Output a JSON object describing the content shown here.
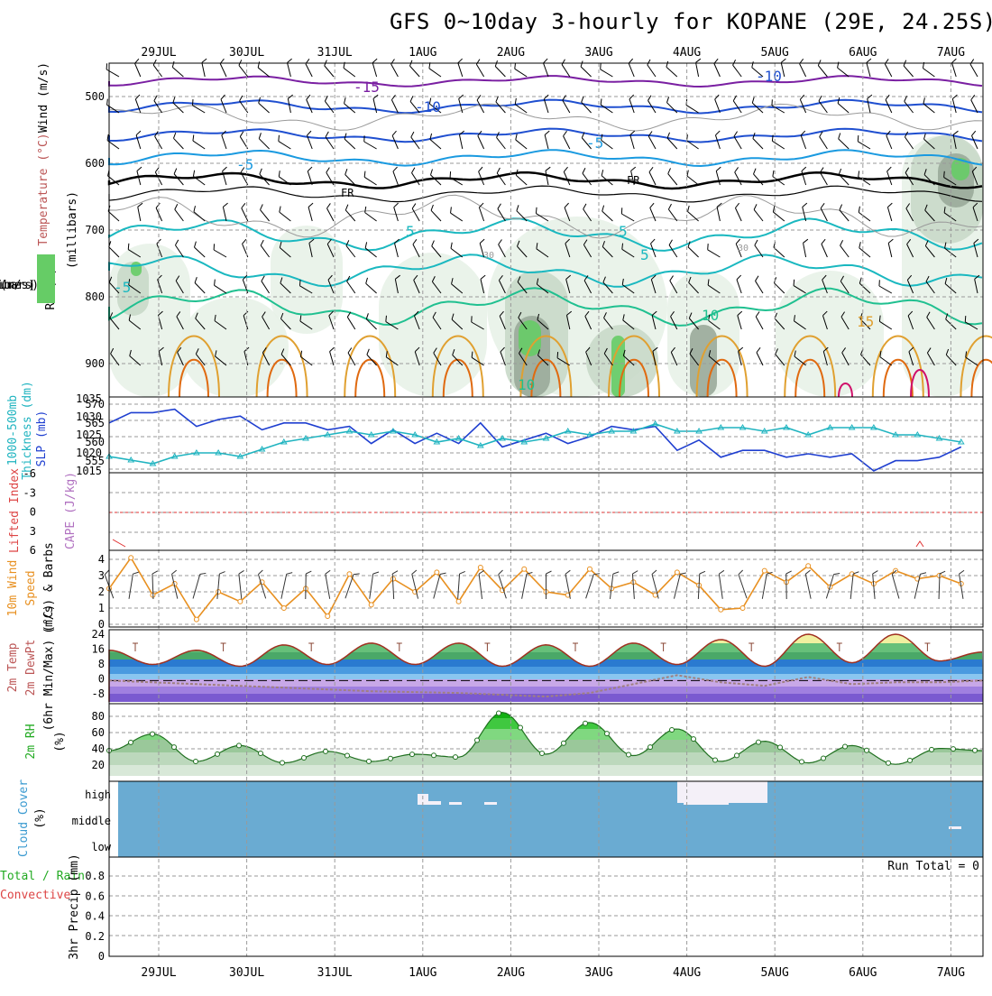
{
  "title": "GFS 0~10day 3-hourly for KOPANE (29E, 24.25S)",
  "dates": [
    "29JUL",
    "30JUL",
    "31JUL",
    "1AUG",
    "2AUG",
    "3AUG",
    "4AUG",
    "5AUG",
    "6AUG",
    "7AUG"
  ],
  "colors": {
    "frame": "#000000",
    "grid": "#9a9a9a",
    "barb": "#000000",
    "t_m15": "#7a1fa2",
    "t_m10": "#1f4fd0",
    "t_m5": "#1a9ae0",
    "t_0": "#000000",
    "t_5": "#1ab8c0",
    "t_10": "#20c090",
    "t_15": "#e0a030",
    "t_20": "#e06a10",
    "t_25": "#d0106a",
    "rh_low": "#e8f2e8",
    "rh_mid": "#c9d9c9",
    "rh_hi": "#9aaa9a",
    "rh_wet": "#66cc66",
    "slp": "#1f3fd0",
    "thick": "#20b4c0",
    "cape_ref": "#e03030",
    "wind": "#e89020",
    "cloud_bg": "#6aabd2",
    "cloud_white": "#f4f0f8",
    "temp_line": "#a03020",
    "dew_line": "#a08080"
  },
  "panels": {
    "upper": {
      "left_labels": [
        "RH (%)",
        "Temperature (°C)",
        "Wind (m/s)",
        "(millibars)"
      ],
      "yticks": [
        "500",
        "600",
        "700",
        "800",
        "900"
      ]
    },
    "slp": {
      "left_labels": [
        "1000-500mb",
        "Thickness (dm)",
        "SLP (mb)"
      ],
      "left_ticks": [
        "570",
        "565",
        "560",
        "555"
      ],
      "right_ticks": [
        "1035",
        "1030",
        "1025",
        "1020",
        "1015"
      ]
    },
    "li": {
      "left_labels": [
        "Lifted Index",
        "CAPE (J/kg)"
      ],
      "ticks": [
        "-6",
        "-3",
        "0",
        "3",
        "6"
      ]
    },
    "wind10": {
      "left_labels": [
        "10m Wind",
        "Speed",
        "(m/s) & Barbs"
      ],
      "ticks": [
        "4",
        "3",
        "2",
        "1",
        "0"
      ]
    },
    "temp2m": {
      "left_labels": [
        "2m Temp",
        "2m DewPt",
        "(6hr Min/Max) (°C)"
      ],
      "ticks": [
        "24",
        "16",
        "8",
        "0",
        "-8"
      ]
    },
    "rh2m": {
      "left_labels": [
        "2m RH",
        "(%)"
      ],
      "ticks": [
        "80",
        "60",
        "40",
        "20"
      ]
    },
    "cloud": {
      "left_labels": [
        "Cloud Cover",
        "(%)"
      ],
      "ticks": [
        "high",
        "middle",
        "low"
      ]
    },
    "precip": {
      "left_labels": [
        "Total / Rain",
        "Convective",
        "3hr Precip (mm)"
      ],
      "ticks": [
        "0.8",
        "0.6",
        "0.4",
        "0.2",
        "0"
      ],
      "run_total": "Run Total = 0"
    }
  },
  "contour_labels": [
    "-15",
    "-10",
    "-10",
    "-5",
    "-5",
    "FR",
    "FR",
    "5",
    "5",
    "5",
    "-5",
    "10",
    "10",
    "15",
    "30",
    "30"
  ],
  "chart_data": [
    {
      "type": "line",
      "title": "SLP (mb)",
      "x": [
        0,
        2,
        4,
        6,
        8,
        10,
        12,
        14,
        16,
        18,
        20,
        22,
        24,
        26,
        28,
        30,
        32,
        34,
        36,
        38,
        40,
        42,
        44,
        46,
        48,
        50,
        52,
        54,
        56,
        58,
        60,
        62,
        64,
        66,
        68,
        70,
        72,
        74,
        76,
        78
      ],
      "values": [
        1029,
        1032,
        1032,
        1033,
        1028,
        1030,
        1031,
        1027,
        1029,
        1029,
        1027,
        1028,
        1023,
        1027,
        1023,
        1026,
        1023,
        1029,
        1022,
        1024,
        1026,
        1023,
        1025,
        1028,
        1027,
        1028,
        1021,
        1024,
        1019,
        1021,
        1021,
        1019,
        1020,
        1019,
        1020,
        1015,
        1018,
        1018,
        1019,
        1022
      ],
      "ylim": [
        1015,
        1035
      ]
    },
    {
      "type": "line",
      "title": "1000-500mb Thickness (dm)",
      "x": [
        0,
        2,
        4,
        6,
        8,
        10,
        12,
        14,
        16,
        18,
        20,
        22,
        24,
        26,
        28,
        30,
        32,
        34,
        36,
        38,
        40,
        42,
        44,
        46,
        48,
        50,
        52,
        54,
        56,
        58,
        60,
        62,
        64,
        66,
        68,
        70,
        72,
        74,
        76,
        78
      ],
      "values": [
        556,
        555,
        554,
        556,
        557,
        557,
        556,
        558,
        560,
        561,
        562,
        563,
        562,
        563,
        562,
        560,
        561,
        559,
        561,
        560,
        561,
        563,
        562,
        563,
        563,
        565,
        563,
        563,
        564,
        564,
        563,
        564,
        562,
        564,
        564,
        564,
        562,
        562,
        561,
        560
      ],
      "ylim": [
        552,
        571
      ]
    },
    {
      "type": "line",
      "title": "10m Wind Speed (m/s)",
      "x": [
        0,
        2,
        4,
        6,
        8,
        10,
        12,
        14,
        16,
        18,
        20,
        22,
        24,
        26,
        28,
        30,
        32,
        34,
        36,
        38,
        40,
        42,
        44,
        46,
        48,
        50,
        52,
        54,
        56,
        58,
        60,
        62,
        64,
        66,
        68,
        70,
        72,
        74,
        76,
        78
      ],
      "values": [
        2.2,
        4.1,
        1.8,
        2.5,
        0.3,
        2.0,
        1.4,
        2.6,
        1.0,
        2.2,
        0.5,
        3.1,
        1.2,
        2.8,
        2.0,
        3.2,
        1.4,
        3.5,
        2.1,
        3.4,
        2.0,
        1.8,
        3.4,
        2.2,
        2.6,
        1.8,
        3.2,
        2.4,
        0.9,
        1.0,
        3.3,
        2.6,
        3.6,
        2.3,
        3.1,
        2.5,
        3.3,
        2.8,
        3.0,
        2.5
      ],
      "ylim": [
        0,
        4.5
      ]
    },
    {
      "type": "line",
      "title": "2m Temp (°C)",
      "x": [
        0,
        4,
        8,
        12,
        16,
        20,
        24,
        28,
        32,
        36,
        40,
        44,
        48,
        52,
        56,
        60,
        64,
        68,
        72,
        76,
        80
      ],
      "values": [
        17,
        9,
        17,
        8,
        20,
        9,
        21,
        9,
        21,
        8,
        20,
        8,
        21,
        9,
        23,
        8,
        26,
        10,
        26,
        11,
        16
      ],
      "ylim": [
        -12,
        26
      ]
    },
    {
      "type": "line",
      "title": "2m DewPt (°C)",
      "x": [
        0,
        8,
        16,
        24,
        32,
        40,
        44,
        48,
        52,
        56,
        60,
        64,
        68,
        72,
        76,
        80
      ],
      "values": [
        0,
        -2,
        -4,
        -6,
        -7,
        -9,
        -7,
        -2,
        3,
        -1,
        -3,
        2,
        -2,
        -1,
        -1,
        0
      ],
      "ylim": [
        -12,
        26
      ]
    },
    {
      "type": "line",
      "title": "2m RH (%)",
      "x": [
        0,
        4,
        8,
        12,
        16,
        20,
        24,
        28,
        32,
        36,
        40,
        44,
        48,
        52,
        56,
        60,
        64,
        68,
        72,
        76,
        80
      ],
      "values": [
        35,
        58,
        20,
        42,
        18,
        34,
        20,
        30,
        26,
        88,
        30,
        74,
        28,
        65,
        20,
        48,
        18,
        42,
        16,
        38,
        35
      ],
      "ylim": [
        0,
        100
      ]
    },
    {
      "type": "area",
      "title": "3hr Precip (mm)",
      "values": [
        0
      ],
      "ylim": [
        0,
        1
      ]
    }
  ]
}
